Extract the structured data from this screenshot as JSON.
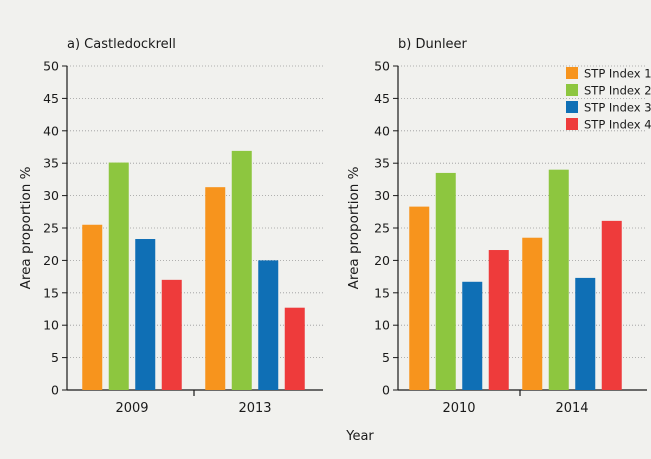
{
  "figure": {
    "xlabel": "Year",
    "ylabel": "Area proportion %"
  },
  "legend": {
    "placement": "top-right of panel b",
    "entries": [
      {
        "name": "STP Index 1",
        "color": "#f7941d"
      },
      {
        "name": "STP Index 2",
        "color": "#8dc63f"
      },
      {
        "name": "STP Index 3",
        "color": "#0f6fb5"
      },
      {
        "name": "STP Index 4",
        "color": "#ee3b3b"
      }
    ]
  },
  "chart_data": [
    {
      "type": "bar",
      "title": "a) Castledockrell",
      "xlabel": "Year",
      "ylabel": "Area proportion %",
      "ylim": [
        0,
        50
      ],
      "yticks": [
        0,
        5,
        10,
        15,
        20,
        25,
        30,
        35,
        40,
        45,
        50
      ],
      "grid": "horizontal dotted",
      "categories": [
        "2009",
        "2013"
      ],
      "series": [
        {
          "name": "STP Index 1",
          "color": "#f7941d",
          "values": [
            25.5,
            31.3
          ]
        },
        {
          "name": "STP Index 2",
          "color": "#8dc63f",
          "values": [
            35.1,
            36.9
          ]
        },
        {
          "name": "STP Index 3",
          "color": "#0f6fb5",
          "values": [
            23.3,
            20.0
          ]
        },
        {
          "name": "STP Index 4",
          "color": "#ee3b3b",
          "values": [
            17.0,
            12.7
          ]
        }
      ]
    },
    {
      "type": "bar",
      "title": "b) Dunleer",
      "xlabel": "Year",
      "ylabel": "Area proportion %",
      "ylim": [
        0,
        50
      ],
      "yticks": [
        0,
        5,
        10,
        15,
        20,
        25,
        30,
        35,
        40,
        45,
        50
      ],
      "grid": "horizontal dotted",
      "categories": [
        "2010",
        "2014"
      ],
      "series": [
        {
          "name": "STP Index 1",
          "color": "#f7941d",
          "values": [
            28.3,
            23.5
          ]
        },
        {
          "name": "STP Index 2",
          "color": "#8dc63f",
          "values": [
            33.5,
            34.0
          ]
        },
        {
          "name": "STP Index 3",
          "color": "#0f6fb5",
          "values": [
            16.7,
            17.3
          ]
        },
        {
          "name": "STP Index 4",
          "color": "#ee3b3b",
          "values": [
            21.6,
            26.1
          ]
        }
      ]
    }
  ]
}
